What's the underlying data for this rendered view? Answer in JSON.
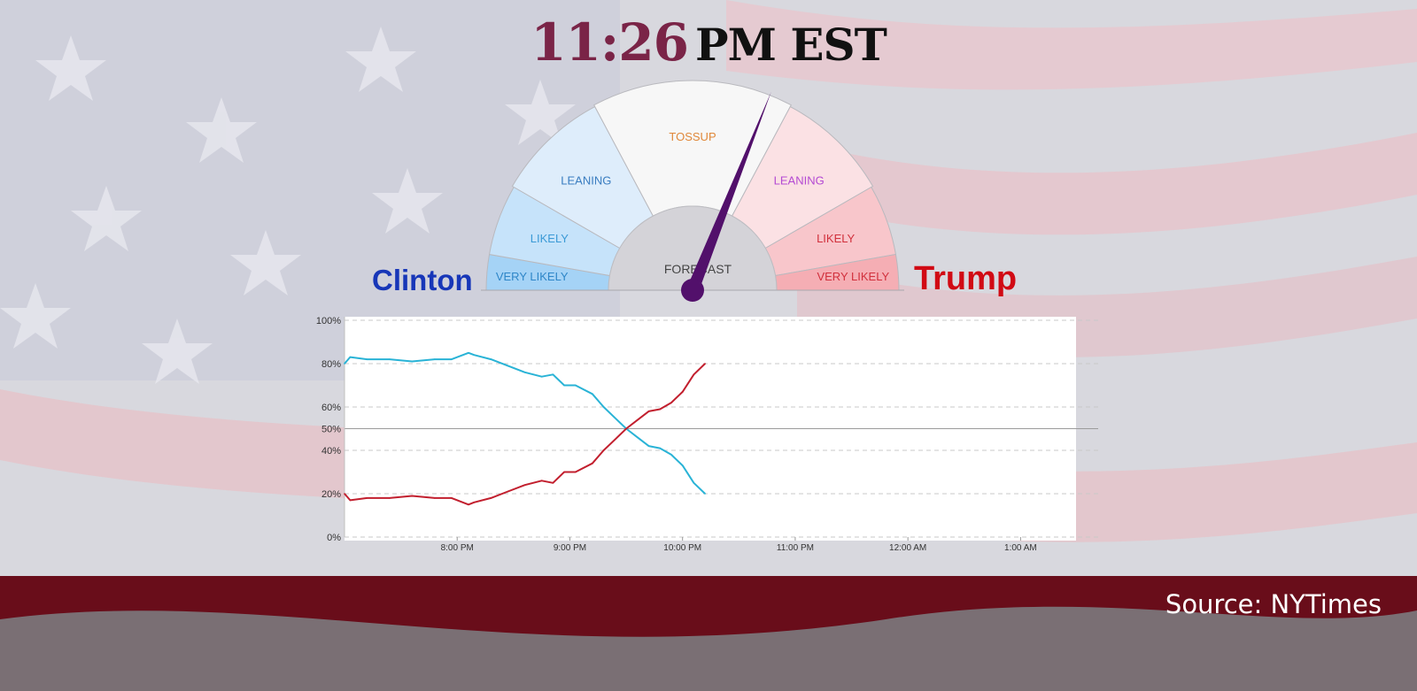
{
  "header": {
    "time": "11:26",
    "zone": "PM EST"
  },
  "candidates": {
    "left": "Clinton",
    "right": "Trump",
    "left_color": "#1736b8",
    "right_color": "#d10a14"
  },
  "gauge": {
    "center_label": "FORECAST",
    "needle_value": 0.62,
    "needle_color": "#52106b",
    "segments": [
      {
        "label": "VERY LIKELY",
        "side": "clinton",
        "color": "#a5d3f6",
        "text_color": "#2e86c8"
      },
      {
        "label": "LIKELY",
        "side": "clinton",
        "color": "#c6e3fa",
        "text_color": "#3b9ad6"
      },
      {
        "label": "LEANING",
        "side": "clinton",
        "color": "#deedfb",
        "text_color": "#3a7dc0"
      },
      {
        "label": "TOSSUP",
        "side": "none",
        "color": "#f7f7f7",
        "text_color": "#e0883a"
      },
      {
        "label": "LEANING",
        "side": "trump",
        "color": "#fbe1e4",
        "text_color": "#b44ad3"
      },
      {
        "label": "LIKELY",
        "side": "trump",
        "color": "#f8c6cb",
        "text_color": "#d1303c"
      },
      {
        "label": "VERY LIKELY",
        "side": "trump",
        "color": "#f5aeb4",
        "text_color": "#d1303c"
      }
    ]
  },
  "chart_data": {
    "type": "line",
    "ylim": [
      0,
      100
    ],
    "xlim": [
      7.0,
      13.5
    ],
    "yticks": [
      {
        "value": 100,
        "label": "100%"
      },
      {
        "value": 80,
        "label": "80%"
      },
      {
        "value": 60,
        "label": "60%"
      },
      {
        "value": 50,
        "label": "50%"
      },
      {
        "value": 40,
        "label": "40%"
      },
      {
        "value": 20,
        "label": "20%"
      },
      {
        "value": 0,
        "label": "0%"
      }
    ],
    "xticks": [
      {
        "value": 8,
        "label": "8:00 PM"
      },
      {
        "value": 9,
        "label": "9:00 PM"
      },
      {
        "value": 10,
        "label": "10:00 PM"
      },
      {
        "value": 11,
        "label": "11:00 PM"
      },
      {
        "value": 12,
        "label": "12:00 AM"
      },
      {
        "value": 13,
        "label": "1:00 AM"
      }
    ],
    "reference_line": 50,
    "grid": "dashed horizontal",
    "series": [
      {
        "color": "#29b3d6",
        "x": [
          7.0,
          7.05,
          7.2,
          7.4,
          7.6,
          7.8,
          7.95,
          8.1,
          8.15,
          8.3,
          8.45,
          8.6,
          8.75,
          8.85,
          8.95,
          9.05,
          9.2,
          9.3,
          9.4,
          9.5,
          9.6,
          9.7,
          9.8,
          9.9,
          10.0,
          10.1,
          10.2
        ],
        "y": [
          80,
          83,
          82,
          82,
          81,
          82,
          82,
          85,
          84,
          82,
          79,
          76,
          74,
          75,
          70,
          70,
          66,
          60,
          55,
          50,
          46,
          42,
          41,
          38,
          33,
          25,
          20
        ]
      },
      {
        "color": "#c21f2e",
        "x": [
          7.0,
          7.05,
          7.2,
          7.4,
          7.6,
          7.8,
          7.95,
          8.1,
          8.15,
          8.3,
          8.45,
          8.6,
          8.75,
          8.85,
          8.95,
          9.05,
          9.2,
          9.3,
          9.4,
          9.5,
          9.6,
          9.7,
          9.8,
          9.9,
          10.0,
          10.1,
          10.2
        ],
        "y": [
          20,
          17,
          18,
          18,
          19,
          18,
          18,
          15,
          16,
          18,
          21,
          24,
          26,
          25,
          30,
          30,
          34,
          40,
          45,
          50,
          54,
          58,
          59,
          62,
          67,
          75,
          80
        ]
      }
    ]
  },
  "source": {
    "text": "Source: NYTimes"
  }
}
